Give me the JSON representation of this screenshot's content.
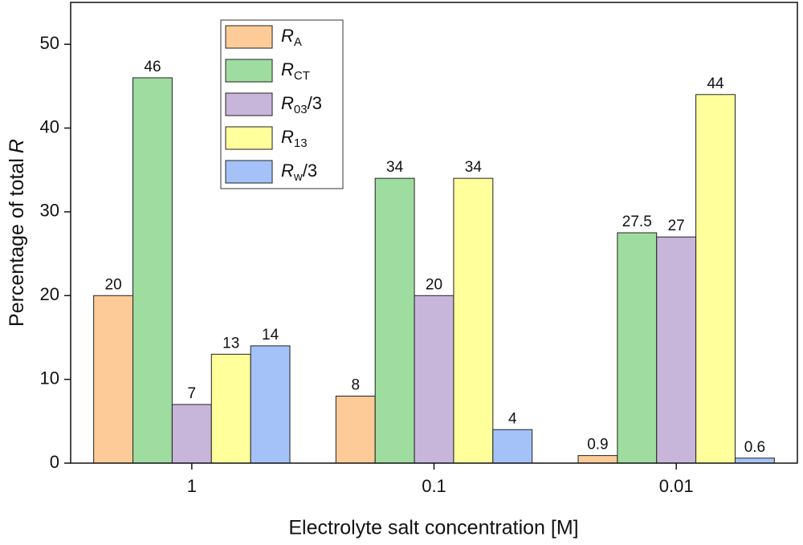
{
  "chart_data": {
    "type": "bar",
    "xlabel": "Electrolyte salt concentration [M]",
    "ylabel": "Percentage of total",
    "ylabel_var": "R",
    "categories": [
      "1",
      "0.1",
      "0.01"
    ],
    "series": [
      {
        "name": "R",
        "name_sub": "A",
        "color": "#fdcb97",
        "values": [
          20,
          8,
          0.9
        ]
      },
      {
        "name": "R",
        "name_sub": "CT",
        "color": "#9fdc9f",
        "values": [
          46,
          34,
          27.5
        ]
      },
      {
        "name": "R",
        "name_sub": "03",
        "name_suffix": "/3",
        "color": "#c8b5da",
        "values": [
          7,
          20,
          27
        ]
      },
      {
        "name": "R",
        "name_sub": "13",
        "color": "#ffff9c",
        "values": [
          13,
          34,
          44
        ]
      },
      {
        "name": "R",
        "name_sub": "w",
        "name_suffix": "/3",
        "color": "#a4c2f8",
        "values": [
          14,
          4,
          0.6
        ]
      }
    ],
    "ylim": [
      0,
      55
    ],
    "yticks": [
      0,
      10,
      20,
      30,
      40,
      50
    ],
    "grid": false,
    "legend": "upper left"
  }
}
